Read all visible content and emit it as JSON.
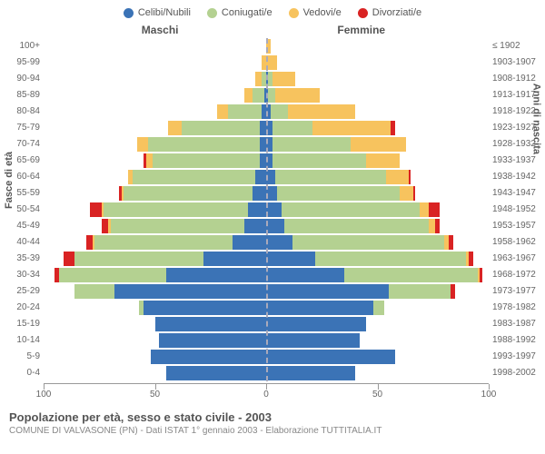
{
  "chart": {
    "type": "population-pyramid",
    "legend_items": [
      {
        "label": "Celibi/Nubili",
        "color": "#3b73b6"
      },
      {
        "label": "Coniugati/e",
        "color": "#b4d191"
      },
      {
        "label": "Vedovi/e",
        "color": "#f7c35e"
      },
      {
        "label": "Divorziati/e",
        "color": "#d92323"
      }
    ],
    "header_left": "Maschi",
    "header_right": "Femmine",
    "y_title_left": "Fasce di età",
    "y_title_right": "Anni di nascita",
    "title": "Popolazione per età, sesso e stato civile - 2003",
    "subtitle": "COMUNE DI VALVASONE (PN) - Dati ISTAT 1° gennaio 2003 - Elaborazione TUTTITALIA.IT",
    "xlim": 100,
    "xticks": [
      100,
      50,
      0,
      50,
      100
    ],
    "background_color": "#ffffff",
    "rows": [
      {
        "age": "100+",
        "birth": "≤ 1902",
        "m": [
          0,
          0,
          0,
          0
        ],
        "f": [
          0,
          0,
          2,
          0
        ]
      },
      {
        "age": "95-99",
        "birth": "1903-1907",
        "m": [
          0,
          0,
          2,
          0
        ],
        "f": [
          0,
          0,
          5,
          0
        ]
      },
      {
        "age": "90-94",
        "birth": "1908-1912",
        "m": [
          0,
          2,
          3,
          0
        ],
        "f": [
          1,
          2,
          10,
          0
        ]
      },
      {
        "age": "85-89",
        "birth": "1913-1917",
        "m": [
          1,
          5,
          4,
          0
        ],
        "f": [
          1,
          3,
          20,
          0
        ]
      },
      {
        "age": "80-84",
        "birth": "1918-1922",
        "m": [
          2,
          15,
          5,
          0
        ],
        "f": [
          2,
          8,
          30,
          0
        ]
      },
      {
        "age": "75-79",
        "birth": "1923-1927",
        "m": [
          3,
          35,
          6,
          0
        ],
        "f": [
          3,
          18,
          35,
          2
        ]
      },
      {
        "age": "70-74",
        "birth": "1928-1932",
        "m": [
          3,
          50,
          5,
          0
        ],
        "f": [
          3,
          35,
          25,
          0
        ]
      },
      {
        "age": "65-69",
        "birth": "1933-1937",
        "m": [
          3,
          48,
          3,
          1
        ],
        "f": [
          3,
          42,
          15,
          0
        ]
      },
      {
        "age": "60-64",
        "birth": "1938-1942",
        "m": [
          5,
          55,
          2,
          0
        ],
        "f": [
          4,
          50,
          10,
          1
        ]
      },
      {
        "age": "55-59",
        "birth": "1943-1947",
        "m": [
          6,
          58,
          1,
          1
        ],
        "f": [
          5,
          55,
          6,
          1
        ]
      },
      {
        "age": "50-54",
        "birth": "1948-1952",
        "m": [
          8,
          65,
          1,
          5
        ],
        "f": [
          7,
          62,
          4,
          5
        ]
      },
      {
        "age": "45-49",
        "birth": "1953-1957",
        "m": [
          10,
          60,
          1,
          3
        ],
        "f": [
          8,
          65,
          3,
          2
        ]
      },
      {
        "age": "40-44",
        "birth": "1958-1962",
        "m": [
          15,
          62,
          1,
          3
        ],
        "f": [
          12,
          68,
          2,
          2
        ]
      },
      {
        "age": "35-39",
        "birth": "1963-1967",
        "m": [
          28,
          58,
          0,
          5
        ],
        "f": [
          22,
          68,
          1,
          2
        ]
      },
      {
        "age": "30-34",
        "birth": "1968-1972",
        "m": [
          45,
          48,
          0,
          2
        ],
        "f": [
          35,
          60,
          1,
          1
        ]
      },
      {
        "age": "25-29",
        "birth": "1973-1977",
        "m": [
          68,
          18,
          0,
          0
        ],
        "f": [
          55,
          28,
          0,
          2
        ]
      },
      {
        "age": "20-24",
        "birth": "1978-1982",
        "m": [
          55,
          2,
          0,
          0
        ],
        "f": [
          48,
          5,
          0,
          0
        ]
      },
      {
        "age": "15-19",
        "birth": "1983-1987",
        "m": [
          50,
          0,
          0,
          0
        ],
        "f": [
          45,
          0,
          0,
          0
        ]
      },
      {
        "age": "10-14",
        "birth": "1988-1992",
        "m": [
          48,
          0,
          0,
          0
        ],
        "f": [
          42,
          0,
          0,
          0
        ]
      },
      {
        "age": "5-9",
        "birth": "1993-1997",
        "m": [
          52,
          0,
          0,
          0
        ],
        "f": [
          58,
          0,
          0,
          0
        ]
      },
      {
        "age": "0-4",
        "birth": "1998-2002",
        "m": [
          45,
          0,
          0,
          0
        ],
        "f": [
          40,
          0,
          0,
          0
        ]
      }
    ]
  }
}
